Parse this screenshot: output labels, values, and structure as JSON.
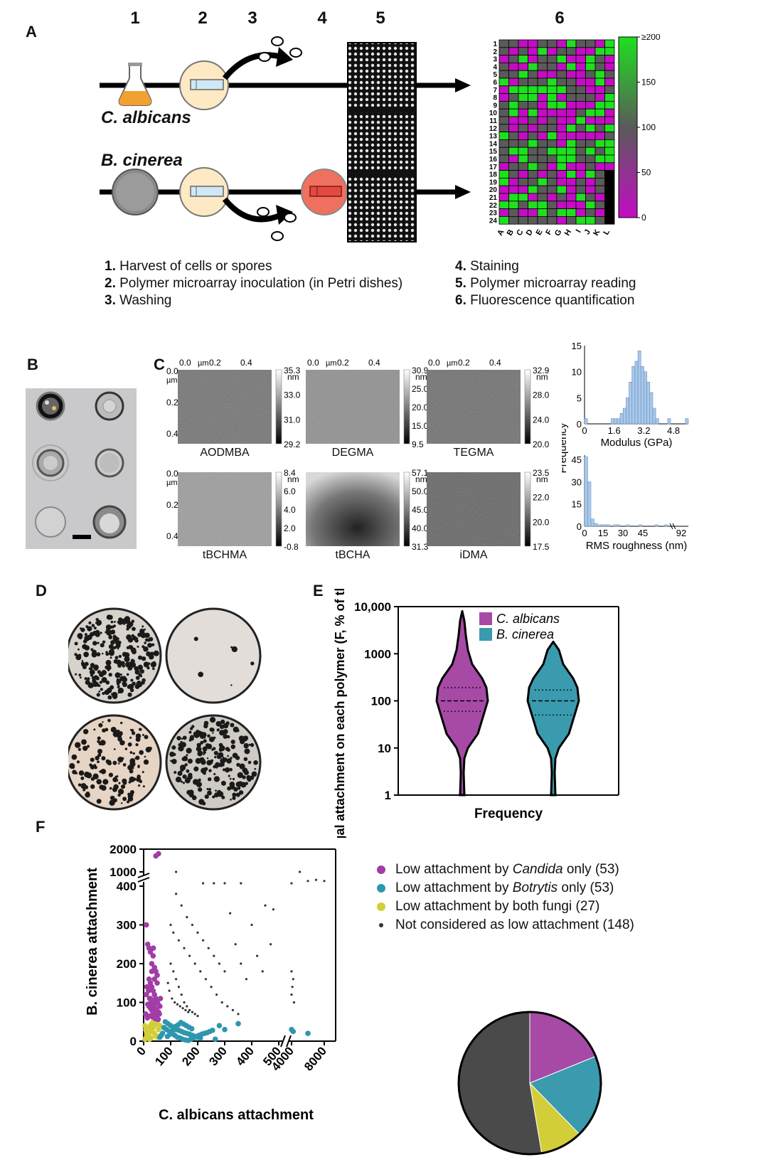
{
  "panelA": {
    "label": "A",
    "steps": [
      "1",
      "2",
      "3",
      "4",
      "5",
      "6"
    ],
    "organisms": [
      "C. albicans",
      "B. cinerea"
    ],
    "legend_left": [
      {
        "num": "1.",
        "text": "Harvest of cells or spores"
      },
      {
        "num": "2.",
        "text": "Polymer microarray inoculation (in Petri dishes)"
      },
      {
        "num": "3.",
        "text": "Washing"
      }
    ],
    "legend_right": [
      {
        "num": "4.",
        "text": "Staining"
      },
      {
        "num": "5.",
        "text": "Polymer microarray reading"
      },
      {
        "num": "6.",
        "text": "Fluorescence quantification"
      }
    ],
    "heatmap": {
      "rows": [
        "1",
        "2",
        "3",
        "4",
        "5",
        "6",
        "7",
        "8",
        "9",
        "10",
        "11",
        "12",
        "13",
        "14",
        "15",
        "16",
        "17",
        "18",
        "19",
        "20",
        "21",
        "22",
        "23",
        "24"
      ],
      "cols": [
        "A",
        "B",
        "C",
        "D",
        "E",
        "F",
        "G",
        "H",
        "I",
        "J",
        "K",
        "L"
      ],
      "colorbar_ticks": [
        "≥200",
        "150",
        "100",
        "50",
        "0"
      ],
      "colors": {
        "low": "#c40cc4",
        "mid": "#5a5a5a",
        "high": "#1ee01e",
        "missing": "#000000"
      }
    }
  },
  "panelB": {
    "label": "B"
  },
  "panelC": {
    "label": "C",
    "afm": [
      {
        "name": "AODMBA",
        "scale": [
          "35.3",
          "33.0",
          "31.0",
          "29.2"
        ]
      },
      {
        "name": "DEGMA",
        "scale": [
          "30.9",
          "25.0",
          "20.0",
          "15.0",
          "9.5"
        ]
      },
      {
        "name": "TEGMA",
        "scale": [
          "32.9",
          "28.0",
          "24.0",
          "20.0"
        ]
      },
      {
        "name": "tBCHMA",
        "scale": [
          "8.4",
          "6.0",
          "4.0",
          "2.0",
          "-0.8"
        ]
      },
      {
        "name": "tBCHA",
        "scale": [
          "57.1",
          "50.0",
          "45.0",
          "40.0",
          "31.3"
        ]
      },
      {
        "name": "iDMA",
        "scale": [
          "23.5",
          "22.0",
          "20.0",
          "17.5"
        ]
      }
    ],
    "scale_unit": "nm",
    "x_ticks": [
      "0.0",
      "0.2",
      "0.4"
    ],
    "x_unit": "µm",
    "y_ticks": [
      "0.0",
      "0.2",
      "0.4"
    ],
    "y_unit": "µm",
    "hist_ylabel": "Frequency"
  },
  "panelD": {
    "label": "D"
  },
  "panelE": {
    "label": "E"
  },
  "panelF": {
    "label": "F"
  },
  "chart_data": [
    {
      "type": "bar",
      "xlabel": "Modulus (GPa)",
      "ylabel": "Frequency",
      "x_ticks": [
        "0",
        "1.6",
        "3.2",
        "4.8"
      ],
      "y_ticks": [
        "0",
        "5",
        "10",
        "15"
      ],
      "xlim": [
        0,
        5.6
      ],
      "ylim": [
        0,
        15
      ],
      "bin_width": 0.16,
      "values": [
        1,
        0,
        0,
        0,
        0,
        0,
        0,
        0,
        0,
        1,
        1,
        1,
        2,
        3,
        5,
        8,
        11,
        12,
        14,
        11,
        10,
        8,
        6,
        3,
        1,
        0,
        0,
        0,
        1,
        0,
        0,
        0,
        0,
        0,
        1
      ],
      "color": "#a8c8ec"
    },
    {
      "type": "bar",
      "xlabel": "RMS roughness (nm)",
      "x_ticks": [
        "0",
        "15",
        "30",
        "45",
        "92"
      ],
      "y_ticks": [
        "0",
        "15",
        "30",
        "45"
      ],
      "ylim": [
        0,
        48
      ],
      "values": [
        47,
        30,
        5,
        2,
        1,
        1,
        1,
        1,
        0,
        1,
        1,
        0,
        0,
        1,
        0,
        0,
        0,
        1,
        0,
        0,
        0,
        0,
        1,
        0,
        0,
        1
      ],
      "axis_break": true
    },
    {
      "type": "violin",
      "ylabel": "% Fungal attachment on each polymer (F, % of the median)",
      "xlabel": "Frequency",
      "y_scale": "log",
      "y_ticks": [
        "1",
        "10",
        "100",
        "1000",
        "10,000"
      ],
      "ylim": [
        1,
        10000
      ],
      "series": [
        {
          "name": "C. albicans",
          "color": "#a64aa6",
          "median": 100,
          "q1": 60,
          "q3": 190,
          "min": 1,
          "max": 8000
        },
        {
          "name": "B. cinerea",
          "color": "#3a9aae",
          "median": 100,
          "q1": 50,
          "q3": 170,
          "min": 1,
          "max": 1800
        }
      ]
    },
    {
      "type": "scatter",
      "xlabel": "C. albicans attachment",
      "ylabel": "B. cinerea attachment",
      "x_ticks": [
        "0",
        "100",
        "200",
        "300",
        "400",
        "500",
        "4000",
        "8000"
      ],
      "y_ticks": [
        "0",
        "100",
        "200",
        "300",
        "400",
        "1000",
        "2000"
      ],
      "axis_breaks": {
        "x": [
          500,
          4000
        ],
        "y": [
          400,
          1000
        ]
      },
      "series": [
        {
          "name": "Low attachment by Candida only",
          "count": 53,
          "color": "#a23ca6",
          "points": [
            [
              10,
              300
            ],
            [
              15,
              250
            ],
            [
              20,
              240
            ],
            [
              25,
              230
            ],
            [
              30,
              200
            ],
            [
              35,
              220
            ],
            [
              40,
              190
            ],
            [
              45,
              180
            ],
            [
              50,
              170
            ],
            [
              20,
              160
            ],
            [
              25,
              150
            ],
            [
              30,
              140
            ],
            [
              35,
              130
            ],
            [
              40,
              120
            ],
            [
              45,
              110
            ],
            [
              50,
              100
            ],
            [
              15,
              95
            ],
            [
              20,
              90
            ],
            [
              25,
              85
            ],
            [
              30,
              80
            ],
            [
              35,
              75
            ],
            [
              40,
              70
            ],
            [
              45,
              65
            ],
            [
              50,
              60
            ],
            [
              10,
              120
            ],
            [
              12,
              140
            ],
            [
              18,
              130
            ],
            [
              22,
              110
            ],
            [
              28,
              100
            ],
            [
              32,
              95
            ],
            [
              38,
              90
            ],
            [
              42,
              85
            ],
            [
              48,
              80
            ],
            [
              55,
              75
            ],
            [
              58,
              70
            ],
            [
              8,
              70
            ],
            [
              14,
              60
            ],
            [
              24,
              65
            ],
            [
              34,
              62
            ],
            [
              44,
              58
            ],
            [
              54,
              56
            ],
            [
              60,
              90
            ],
            [
              62,
              110
            ],
            [
              30,
              180
            ],
            [
              40,
              160
            ],
            [
              50,
              150
            ],
            [
              36,
              240
            ],
            [
              45,
              1700
            ],
            [
              55,
              1800
            ],
            [
              25,
              110
            ],
            [
              35,
              105
            ],
            [
              45,
              102
            ],
            [
              52,
              98
            ]
          ]
        },
        {
          "name": "Low attachment by Botrytis only",
          "count": 53,
          "color": "#2e96ae",
          "points": [
            [
              80,
              50
            ],
            [
              90,
              45
            ],
            [
              100,
              40
            ],
            [
              110,
              35
            ],
            [
              120,
              30
            ],
            [
              130,
              28
            ],
            [
              140,
              25
            ],
            [
              150,
              22
            ],
            [
              160,
              20
            ],
            [
              170,
              18
            ],
            [
              180,
              15
            ],
            [
              190,
              12
            ],
            [
              200,
              10
            ],
            [
              210,
              8
            ],
            [
              85,
              30
            ],
            [
              95,
              25
            ],
            [
              105,
              20
            ],
            [
              115,
              15
            ],
            [
              125,
              10
            ],
            [
              135,
              8
            ],
            [
              145,
              5
            ],
            [
              155,
              3
            ],
            [
              165,
              2
            ],
            [
              175,
              5
            ],
            [
              185,
              8
            ],
            [
              195,
              12
            ],
            [
              205,
              15
            ],
            [
              215,
              18
            ],
            [
              225,
              20
            ],
            [
              235,
              22
            ],
            [
              245,
              25
            ],
            [
              255,
              28
            ],
            [
              265,
              5
            ],
            [
              280,
              40
            ],
            [
              300,
              30
            ],
            [
              350,
              45
            ],
            [
              75,
              35
            ],
            [
              70,
              20
            ],
            [
              65,
              15
            ],
            [
              60,
              10
            ],
            [
              88,
              12
            ],
            [
              98,
              18
            ],
            [
              108,
              28
            ],
            [
              118,
              38
            ],
            [
              128,
              42
            ],
            [
              138,
              48
            ],
            [
              148,
              44
            ],
            [
              158,
              40
            ],
            [
              168,
              36
            ],
            [
              178,
              32
            ],
            [
              4000,
              30
            ],
            [
              4200,
              25
            ],
            [
              6000,
              20
            ]
          ]
        },
        {
          "name": "Low attachment by both fungi",
          "count": 27,
          "color": "#d2ce3a",
          "points": [
            [
              5,
              5
            ],
            [
              10,
              10
            ],
            [
              15,
              15
            ],
            [
              20,
              20
            ],
            [
              25,
              25
            ],
            [
              30,
              30
            ],
            [
              35,
              35
            ],
            [
              40,
              40
            ],
            [
              45,
              45
            ],
            [
              50,
              45
            ],
            [
              10,
              25
            ],
            [
              15,
              30
            ],
            [
              20,
              35
            ],
            [
              25,
              40
            ],
            [
              30,
              45
            ],
            [
              35,
              50
            ],
            [
              40,
              20
            ],
            [
              45,
              15
            ],
            [
              50,
              10
            ],
            [
              55,
              30
            ],
            [
              60,
              40
            ],
            [
              5,
              40
            ],
            [
              8,
              30
            ],
            [
              12,
              20
            ],
            [
              18,
              10
            ],
            [
              22,
              5
            ],
            [
              28,
              8
            ]
          ]
        },
        {
          "name": "Not considered as low attachment",
          "count": 148,
          "color": "#333333",
          "points": [
            [
              120,
              1000
            ],
            [
              220,
              500
            ],
            [
              260,
              500
            ],
            [
              300,
              500
            ],
            [
              360,
              500
            ],
            [
              4000,
              500
            ],
            [
              5000,
              1000
            ],
            [
              6000,
              600
            ],
            [
              7000,
              650
            ],
            [
              8000,
              600
            ],
            [
              120,
              380
            ],
            [
              140,
              350
            ],
            [
              160,
              320
            ],
            [
              180,
              300
            ],
            [
              200,
              280
            ],
            [
              220,
              260
            ],
            [
              240,
              240
            ],
            [
              260,
              220
            ],
            [
              280,
              200
            ],
            [
              300,
              180
            ],
            [
              320,
              330
            ],
            [
              340,
              250
            ],
            [
              360,
              200
            ],
            [
              380,
              160
            ],
            [
              400,
              300
            ],
            [
              450,
              350
            ],
            [
              480,
              340
            ],
            [
              420,
              220
            ],
            [
              440,
              180
            ],
            [
              470,
              250
            ],
            [
              100,
              300
            ],
            [
              110,
              280
            ],
            [
              130,
              260
            ],
            [
              150,
              240
            ],
            [
              170,
              220
            ],
            [
              190,
              200
            ],
            [
              210,
              180
            ],
            [
              230,
              160
            ],
            [
              250,
              140
            ],
            [
              270,
              120
            ],
            [
              290,
              100
            ],
            [
              310,
              90
            ],
            [
              330,
              80
            ],
            [
              350,
              70
            ],
            [
              100,
              200
            ],
            [
              110,
              180
            ],
            [
              120,
              160
            ],
            [
              130,
              140
            ],
            [
              140,
              120
            ],
            [
              150,
              100
            ],
            [
              160,
              90
            ],
            [
              170,
              80
            ],
            [
              180,
              75
            ],
            [
              190,
              70
            ],
            [
              200,
              65
            ],
            [
              90,
              150
            ],
            [
              95,
              130
            ],
            [
              105,
              110
            ],
            [
              115,
              100
            ],
            [
              125,
              95
            ],
            [
              135,
              90
            ],
            [
              145,
              85
            ],
            [
              155,
              80
            ],
            [
              165,
              75
            ],
            [
              4000,
              180
            ],
            [
              4200,
              160
            ],
            [
              4100,
              140
            ],
            [
              4000,
              120
            ],
            [
              4300,
              100
            ]
          ]
        }
      ]
    },
    {
      "type": "pie",
      "values": [
        53,
        53,
        27,
        148
      ],
      "colors": [
        "#a64aa6",
        "#3a9aae",
        "#d2ce3a",
        "#4a4a4a"
      ]
    }
  ]
}
